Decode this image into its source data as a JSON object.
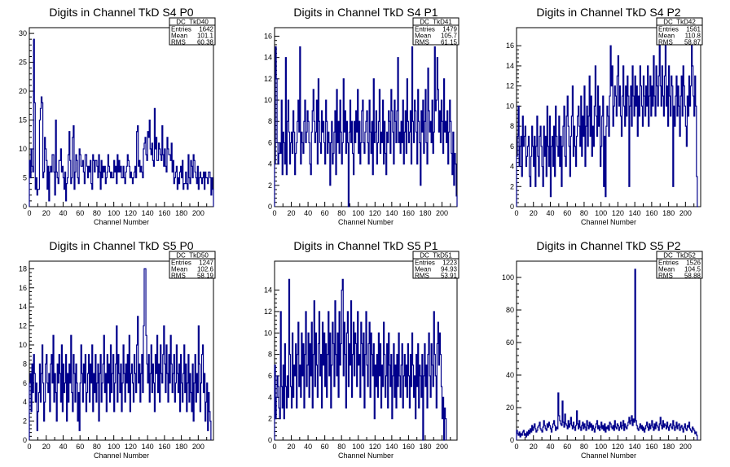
{
  "chart_data": [
    {
      "type": "histogram",
      "title": "Digits in Channel TkD S4 P0",
      "xlabel": "Channel Number",
      "xlim": [
        0,
        218
      ],
      "ylim": [
        0,
        31
      ],
      "xticks": [
        0,
        20,
        40,
        60,
        80,
        100,
        120,
        140,
        160,
        180,
        200
      ],
      "yticks": [
        0,
        5,
        10,
        15,
        20,
        25,
        30
      ],
      "color": "#00008b",
      "stats": {
        "name": "DC_TkD40",
        "entries": "1642",
        "mean": "101.1",
        "rms": "60.38"
      },
      "values": [
        8,
        5,
        10,
        7,
        6,
        29,
        18,
        3,
        5,
        2,
        3,
        3,
        15,
        17,
        19,
        18,
        5,
        6,
        12,
        10,
        8,
        3,
        7,
        1,
        6,
        7,
        6,
        9,
        9,
        6,
        2,
        15,
        6,
        5,
        4,
        8,
        8,
        10,
        6,
        7,
        5,
        3,
        6,
        1,
        4,
        5,
        9,
        13,
        8,
        4,
        5,
        12,
        14,
        3,
        6,
        9,
        8,
        5,
        4,
        10,
        9,
        7,
        7,
        8,
        6,
        4,
        9,
        9,
        7,
        5,
        7,
        6,
        8,
        4,
        3,
        9,
        8,
        6,
        8,
        8,
        7,
        5,
        9,
        6,
        3,
        8,
        5,
        7,
        6,
        7,
        4,
        5,
        6,
        9,
        7,
        6,
        5,
        6,
        5,
        5,
        8,
        6,
        7,
        4,
        9,
        6,
        8,
        6,
        7,
        5,
        5,
        7,
        5,
        4,
        6,
        7,
        9,
        8,
        7,
        5,
        6,
        5,
        4,
        5,
        6,
        7,
        5,
        13,
        14,
        7,
        8,
        6,
        7,
        6,
        5,
        10,
        11,
        12,
        9,
        8,
        13,
        12,
        15,
        10,
        9,
        11,
        8,
        7,
        17,
        10,
        12,
        8,
        8,
        11,
        10,
        9,
        8,
        14,
        9,
        7,
        10,
        7,
        6,
        12,
        10,
        9,
        9,
        8,
        11,
        6,
        8,
        4,
        5,
        6,
        7,
        3,
        5,
        4,
        6,
        7,
        5,
        8,
        3,
        4,
        4,
        6,
        4,
        3,
        9,
        5,
        4,
        8,
        7,
        5,
        9,
        8,
        6,
        5,
        4,
        7,
        3,
        5,
        6,
        5,
        4,
        5,
        6,
        3,
        6,
        5,
        5,
        4,
        6,
        6,
        5,
        2,
        5,
        3
      ]
    },
    {
      "type": "histogram",
      "title": "Digits in Channel TkD S4 P1",
      "xlabel": "Channel Number",
      "xlim": [
        0,
        218
      ],
      "ylim": [
        0,
        16.8
      ],
      "xticks": [
        0,
        20,
        40,
        60,
        80,
        100,
        120,
        140,
        160,
        180,
        200
      ],
      "yticks": [
        0,
        2,
        4,
        6,
        8,
        10,
        12,
        14,
        16
      ],
      "color": "#00008b",
      "stats": {
        "name": "DC_TkD41",
        "entries": "1479",
        "mean": "105.7",
        "rms": "61.15"
      },
      "values": [
        4,
        15,
        12,
        6,
        4,
        5,
        6,
        5,
        10,
        3,
        7,
        6,
        4,
        14,
        3,
        8,
        10,
        7,
        4,
        6,
        7,
        5,
        9,
        7,
        3,
        5,
        6,
        8,
        10,
        7,
        15,
        4,
        7,
        6,
        5,
        8,
        10,
        6,
        7,
        9,
        8,
        6,
        4,
        3,
        7,
        9,
        11,
        8,
        6,
        7,
        10,
        4,
        12,
        8,
        6,
        5,
        9,
        7,
        8,
        6,
        4,
        10,
        8,
        5,
        7,
        6,
        2,
        6,
        8,
        4,
        5,
        7,
        9,
        3,
        11,
        6,
        8,
        5,
        10,
        7,
        4,
        6,
        12,
        7,
        9,
        5,
        8,
        6,
        0,
        7,
        10,
        6,
        8,
        5,
        3,
        8,
        6,
        9,
        7,
        11,
        5,
        8,
        4,
        6,
        9,
        10,
        6,
        5,
        7,
        8,
        9,
        6,
        4,
        10,
        7,
        5,
        8,
        3,
        12,
        6,
        7,
        9,
        4,
        6,
        8,
        11,
        5,
        7,
        6,
        10,
        4,
        8,
        5,
        3,
        7,
        6,
        9,
        8,
        5,
        11,
        9,
        7,
        4,
        10,
        8,
        6,
        9,
        14,
        6,
        7,
        5,
        8,
        6,
        10,
        4,
        7,
        9,
        5,
        12,
        8,
        6,
        7,
        9,
        4,
        15,
        8,
        6,
        10,
        9,
        7,
        4,
        11,
        8,
        6,
        2,
        9,
        7,
        10,
        5,
        8,
        11,
        6,
        4,
        13,
        9,
        7,
        8,
        6,
        10,
        5,
        7,
        15,
        9,
        10,
        14,
        11,
        7,
        9,
        6,
        10,
        8,
        5,
        12,
        7,
        8,
        6,
        9,
        4,
        7,
        10,
        8,
        5,
        3,
        7,
        2,
        5,
        4,
        1
      ]
    },
    {
      "type": "histogram",
      "title": "Digits in Channel TkD S4 P2",
      "xlabel": "Channel Number",
      "xlim": [
        0,
        218
      ],
      "ylim": [
        0,
        17.8
      ],
      "xticks": [
        0,
        20,
        40,
        60,
        80,
        100,
        120,
        140,
        160,
        180,
        200
      ],
      "yticks": [
        0,
        2,
        4,
        6,
        8,
        10,
        12,
        14,
        16
      ],
      "color": "#00008b",
      "stats": {
        "name": "DC_TkD42",
        "entries": "1561",
        "mean": "110.8",
        "rms": "58.87"
      },
      "values": [
        5,
        7,
        10,
        4,
        6,
        7,
        3,
        9,
        6,
        7,
        8,
        4,
        5,
        6,
        7,
        3,
        2,
        5,
        8,
        6,
        4,
        7,
        2,
        6,
        9,
        5,
        3,
        7,
        8,
        6,
        4,
        2,
        8,
        5,
        7,
        3,
        10,
        6,
        4,
        9,
        1,
        6,
        7,
        4,
        8,
        3,
        10,
        7,
        6,
        5,
        9,
        4,
        7,
        2,
        6,
        8,
        10,
        5,
        4,
        9,
        11,
        8,
        6,
        3,
        7,
        9,
        12,
        5,
        8,
        6,
        4,
        7,
        9,
        10,
        8,
        6,
        11,
        5,
        9,
        7,
        12,
        4,
        8,
        10,
        6,
        9,
        13,
        7,
        11,
        5,
        8,
        6,
        10,
        14,
        9,
        7,
        12,
        8,
        10,
        4,
        6,
        9,
        11,
        2,
        7,
        1,
        8,
        10,
        9,
        7,
        11,
        16,
        12,
        14,
        8,
        10,
        12,
        11,
        9,
        13,
        15,
        10,
        12,
        9,
        7,
        11,
        14,
        10,
        8,
        12,
        9,
        13,
        11,
        2,
        10,
        12,
        8,
        14,
        11,
        9,
        13,
        10,
        12,
        7,
        11,
        9,
        14,
        12,
        10,
        8,
        13,
        11,
        9,
        12,
        10,
        14,
        8,
        11,
        13,
        9,
        12,
        10,
        15,
        11,
        9,
        14,
        12,
        10,
        13,
        17,
        12,
        10,
        14,
        11,
        9,
        13,
        16,
        10,
        12,
        8,
        14,
        11,
        9,
        13,
        12,
        2,
        10,
        8,
        11,
        13,
        9,
        12,
        10,
        7,
        11,
        13,
        9,
        14,
        12,
        10,
        8,
        6,
        11,
        9,
        13,
        10,
        12,
        16,
        14,
        11,
        9,
        13,
        10,
        3,
        0
      ]
    },
    {
      "type": "histogram",
      "title": "Digits in Channel TkD S5 P0",
      "xlabel": "Channel Number",
      "xlim": [
        0,
        218
      ],
      "ylim": [
        0,
        18.8
      ],
      "xticks": [
        0,
        20,
        40,
        60,
        80,
        100,
        120,
        140,
        160,
        180,
        200
      ],
      "yticks": [
        0,
        2,
        4,
        6,
        8,
        10,
        12,
        14,
        16,
        18
      ],
      "color": "#00008b",
      "stats": {
        "name": "DC_TkD50",
        "entries": "1247",
        "mean": "102.6",
        "rms": "58.19"
      },
      "values": [
        6,
        7,
        3,
        8,
        5,
        9,
        7,
        4,
        6,
        1,
        3,
        5,
        8,
        4,
        7,
        10,
        6,
        2,
        4,
        8,
        9,
        6,
        5,
        7,
        3,
        8,
        9,
        6,
        11,
        4,
        7,
        5,
        2,
        8,
        6,
        9,
        7,
        4,
        10,
        3,
        8,
        5,
        6,
        9,
        2,
        7,
        4,
        8,
        6,
        11,
        5,
        3,
        9,
        7,
        4,
        8,
        6,
        2,
        5,
        1,
        6,
        10,
        7,
        4,
        8,
        6,
        9,
        3,
        5,
        7,
        9,
        4,
        8,
        6,
        10,
        3,
        7,
        5,
        9,
        4,
        6,
        8,
        2,
        7,
        9,
        4,
        6,
        8,
        11,
        5,
        7,
        3,
        9,
        6,
        8,
        4,
        10,
        5,
        7,
        9,
        3,
        6,
        8,
        12,
        4,
        9,
        7,
        5,
        8,
        3,
        6,
        10,
        7,
        4,
        8,
        6,
        9,
        5,
        11,
        3,
        7,
        8,
        6,
        4,
        9,
        7,
        5,
        10,
        13,
        6,
        8,
        4,
        7,
        9,
        5,
        12,
        18,
        18,
        11,
        8,
        6,
        9,
        4,
        7,
        10,
        5,
        8,
        6,
        3,
        9,
        7,
        11,
        5,
        8,
        4,
        10,
        7,
        6,
        9,
        12,
        8,
        5,
        10,
        7,
        4,
        9,
        6,
        11,
        8,
        5,
        7,
        9,
        4,
        6,
        10,
        7,
        5,
        8,
        3,
        9,
        6,
        4,
        7,
        10,
        5,
        8,
        3,
        6,
        9,
        4,
        7,
        5,
        3,
        8,
        2,
        6,
        9,
        4,
        7,
        5,
        12,
        8,
        3,
        6,
        9,
        10,
        5,
        7,
        2,
        4,
        6,
        1,
        5,
        3,
        2
      ]
    },
    {
      "type": "histogram",
      "title": "Digits in Channel TkD S5 P1",
      "xlabel": "Channel Number",
      "xlim": [
        0,
        218
      ],
      "ylim": [
        0,
        16.7
      ],
      "xticks": [
        0,
        20,
        40,
        60,
        80,
        100,
        120,
        140,
        160,
        180,
        200
      ],
      "yticks": [
        0,
        2,
        4,
        6,
        8,
        10,
        12,
        14
      ],
      "color": "#00008b",
      "stats": {
        "name": "DC_TkD51",
        "entries": "1223",
        "mean": "94.93",
        "rms": "53.91"
      },
      "values": [
        7,
        2,
        4,
        6,
        5,
        3,
        2,
        12,
        5,
        3,
        7,
        2,
        9,
        5,
        3,
        6,
        4,
        15,
        8,
        5,
        3,
        10,
        4,
        7,
        6,
        9,
        3,
        8,
        11,
        5,
        7,
        4,
        10,
        6,
        9,
        3,
        8,
        12,
        5,
        7,
        10,
        4,
        9,
        6,
        11,
        3,
        8,
        13,
        5,
        10,
        7,
        4,
        9,
        12,
        6,
        8,
        3,
        11,
        7,
        10,
        5,
        9,
        4,
        8,
        12,
        6,
        10,
        3,
        7,
        11,
        9,
        5,
        13,
        8,
        6,
        10,
        4,
        12,
        7,
        9,
        14,
        15,
        6,
        11,
        8,
        3,
        10,
        12,
        5,
        9,
        7,
        13,
        4,
        8,
        11,
        6,
        10,
        9,
        5,
        12,
        7,
        8,
        4,
        11,
        9,
        6,
        10,
        3,
        8,
        12,
        7,
        5,
        9,
        11,
        4,
        10,
        8,
        6,
        9,
        2,
        7,
        5,
        8,
        4,
        10,
        6,
        9,
        3,
        7,
        5,
        11,
        8,
        4,
        6,
        9,
        3,
        10,
        7,
        5,
        8,
        2,
        6,
        9,
        4,
        7,
        3,
        8,
        5,
        10,
        6,
        4,
        7,
        9,
        3,
        6,
        8,
        5,
        7,
        4,
        9,
        6,
        3,
        8,
        5,
        10,
        7,
        4,
        6,
        2,
        8,
        5,
        9,
        3,
        7,
        6,
        4,
        8,
        0,
        6,
        9,
        5,
        7,
        3,
        8,
        10,
        6,
        4,
        9,
        7,
        5,
        12,
        8,
        6,
        3,
        9,
        11,
        7,
        10,
        8,
        5,
        2,
        4,
        0,
        3,
        2
      ]
    },
    {
      "type": "histogram",
      "title": "Digits in Channel TkD S5 P2",
      "xlabel": "Channel Number",
      "xlim": [
        0,
        218
      ],
      "ylim": [
        0,
        110
      ],
      "xticks": [
        0,
        20,
        40,
        60,
        80,
        100,
        120,
        140,
        160,
        180,
        200
      ],
      "yticks": [
        0,
        20,
        40,
        60,
        80,
        100
      ],
      "color": "#00008b",
      "stats": {
        "name": "DC_TkD52",
        "entries": "1526",
        "mean": "104.5",
        "rms": "58.88"
      },
      "values": [
        6,
        4,
        3,
        5,
        2,
        4,
        3,
        5,
        6,
        3,
        4,
        2,
        5,
        3,
        6,
        4,
        7,
        5,
        9,
        6,
        8,
        10,
        7,
        5,
        6,
        8,
        9,
        11,
        7,
        6,
        5,
        8,
        12,
        9,
        7,
        6,
        10,
        8,
        11,
        9,
        7,
        5,
        8,
        10,
        12,
        9,
        6,
        8,
        7,
        29,
        15,
        12,
        10,
        9,
        24,
        11,
        8,
        16,
        10,
        9,
        7,
        12,
        8,
        10,
        14,
        9,
        7,
        11,
        8,
        6,
        9,
        18,
        10,
        7,
        12,
        8,
        6,
        9,
        11,
        7,
        10,
        8,
        6,
        12,
        9,
        7,
        11,
        8,
        10,
        6,
        9,
        7,
        5,
        8,
        10,
        12,
        7,
        9,
        6,
        8,
        11,
        7,
        9,
        6,
        10,
        5,
        8,
        7,
        9,
        6,
        11,
        10,
        8,
        7,
        9,
        6,
        12,
        8,
        7,
        10,
        9,
        6,
        8,
        11,
        7,
        9,
        12,
        6,
        10,
        8,
        7,
        9,
        11,
        14,
        10,
        12,
        15,
        9,
        13,
        11,
        105,
        12,
        9,
        7,
        6,
        8,
        10,
        7,
        9,
        6,
        8,
        5,
        7,
        9,
        11,
        8,
        6,
        10,
        7,
        9,
        12,
        8,
        6,
        10,
        7,
        11,
        9,
        8,
        6,
        10,
        14,
        9,
        7,
        12,
        8,
        10,
        9,
        7,
        11,
        8,
        6,
        9,
        10,
        8,
        7,
        12,
        9,
        6,
        8,
        11,
        7,
        9,
        10,
        6,
        8,
        9,
        7,
        5,
        8,
        10,
        7,
        6,
        9,
        8,
        11,
        7,
        6,
        5,
        8,
        7,
        6,
        4,
        5,
        3
      ]
    }
  ]
}
